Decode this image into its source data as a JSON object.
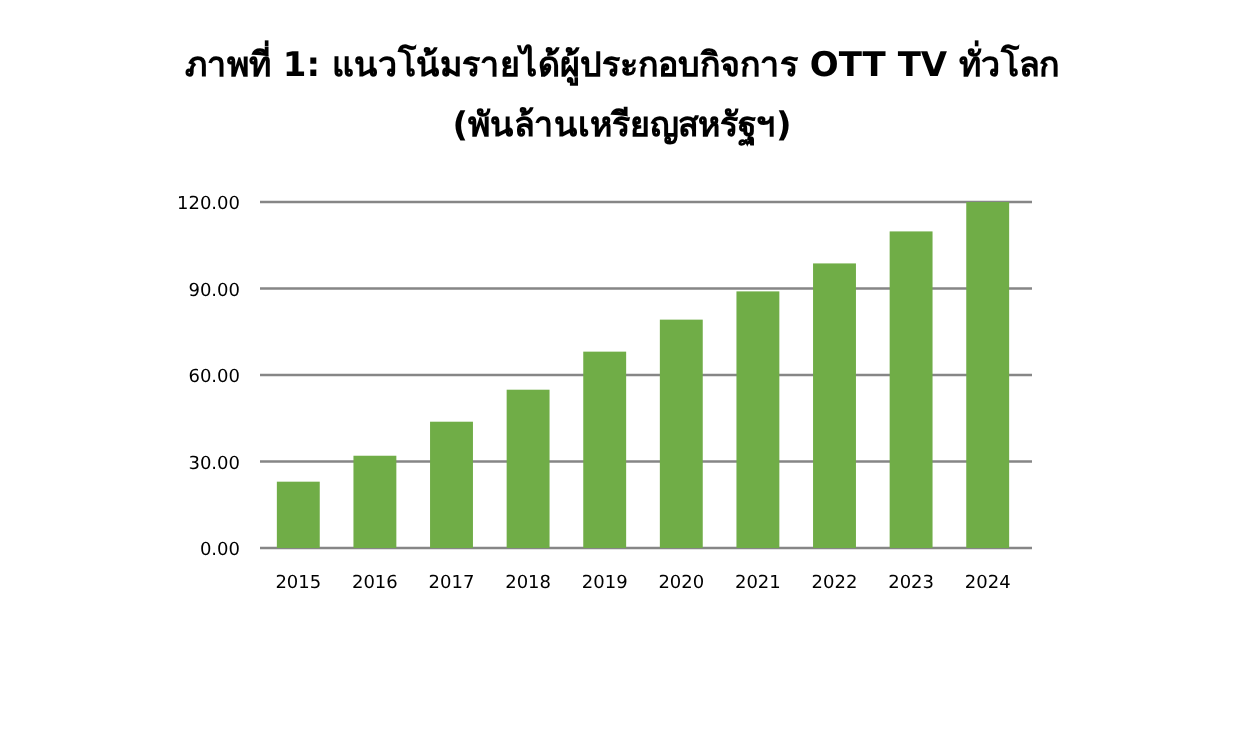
{
  "chart_data": {
    "type": "bar",
    "title": "ภาพที่ 1: แนวโน้มรายได้ผู้ประกอบกิจการ OTT TV ทั่วโลก",
    "subtitle": "(พันล้านเหรียญสหรัฐฯ)",
    "categories": [
      "2015",
      "2016",
      "2017",
      "2018",
      "2019",
      "2020",
      "2021",
      "2022",
      "2023",
      "2024"
    ],
    "values": [
      23,
      32,
      43.8,
      54.9,
      68.1,
      79.2,
      89,
      98.7,
      109.8,
      120
    ],
    "color": "#70ad47",
    "ylim": [
      0,
      120
    ],
    "yticks": [
      {
        "value": 0,
        "label": "0.00"
      },
      {
        "value": 30,
        "label": "30.00"
      },
      {
        "value": 60,
        "label": "60.00"
      },
      {
        "value": 90,
        "label": "90.00"
      },
      {
        "value": 120,
        "label": "120.00"
      }
    ],
    "grid": "y"
  }
}
